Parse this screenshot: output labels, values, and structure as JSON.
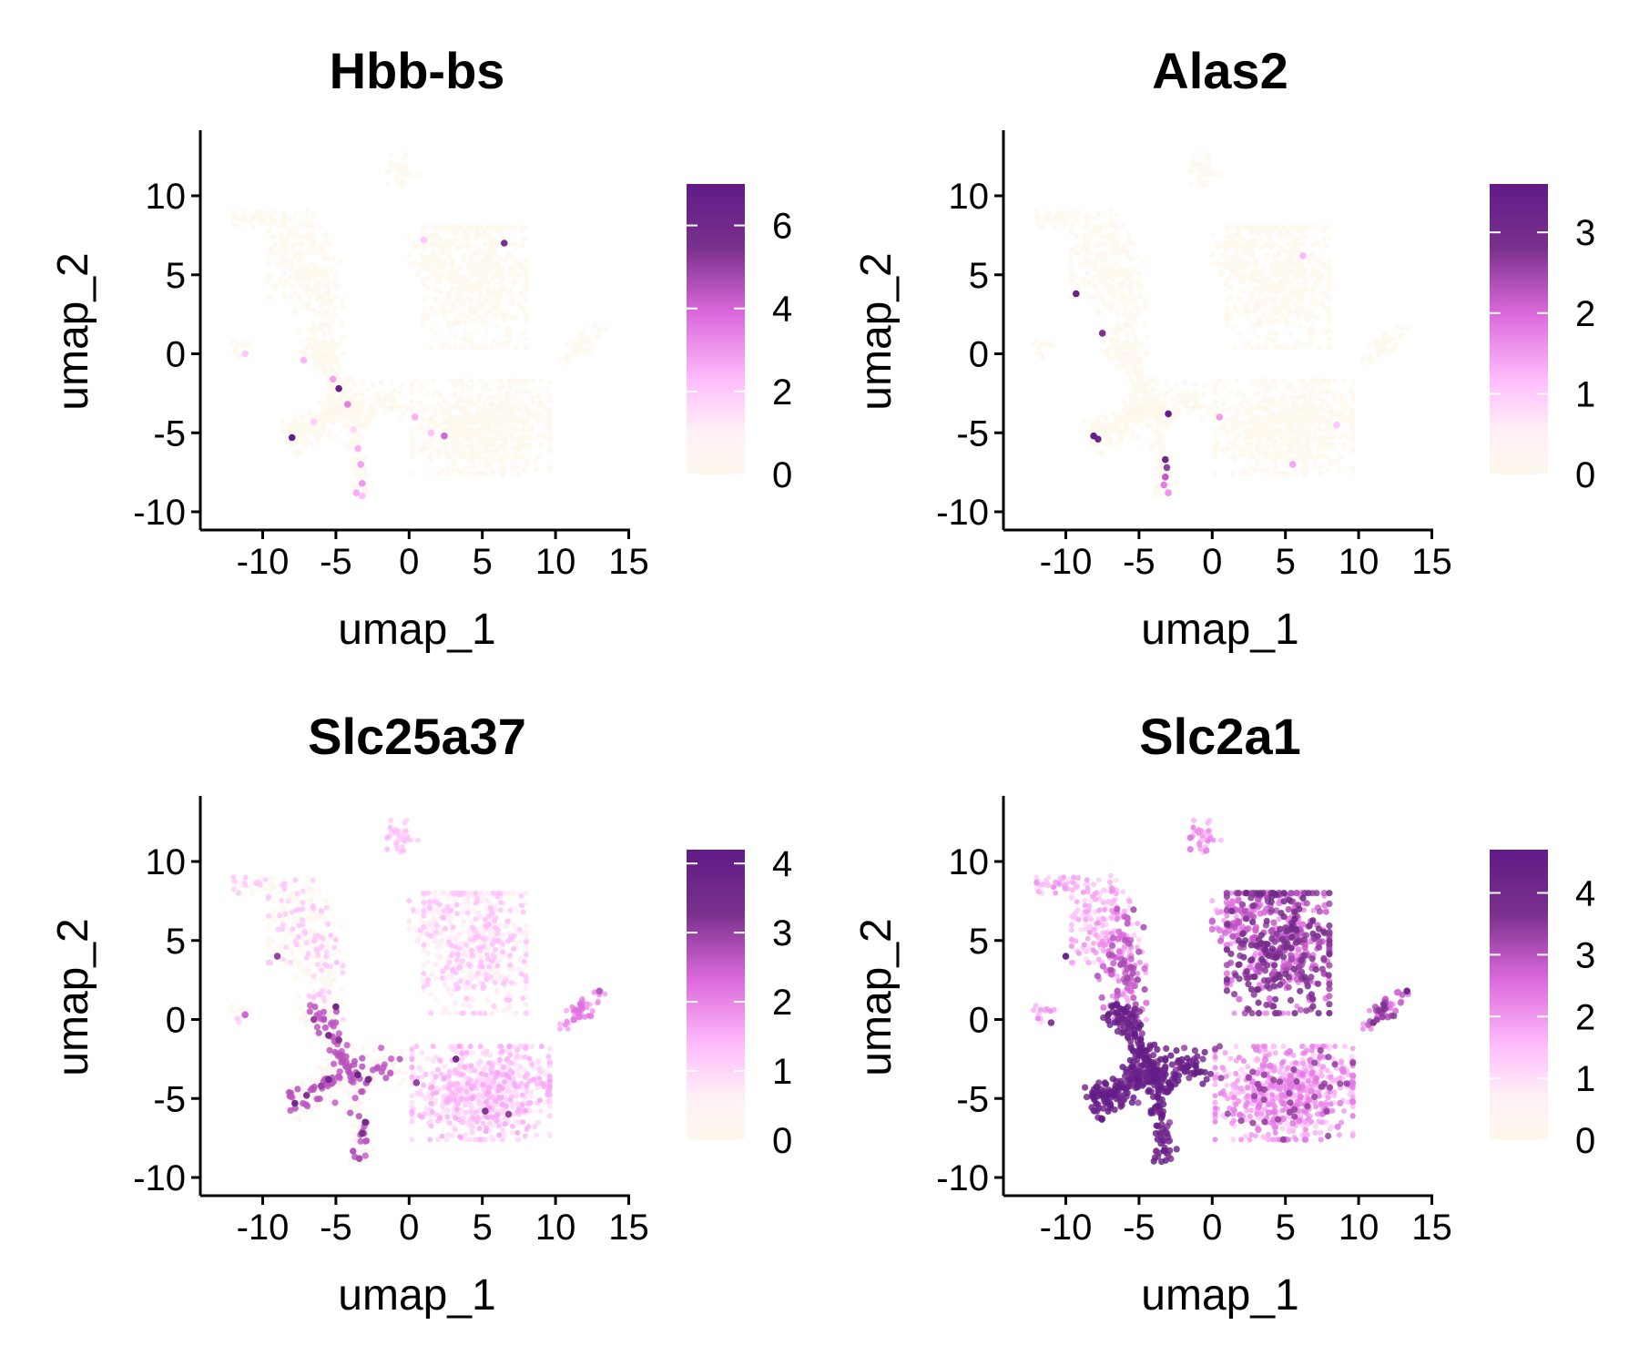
{
  "panels": [
    {
      "title": "Hbb-bs",
      "xlabel": "umap_1",
      "ylabel": "umap_2",
      "xlim": [
        -14,
        15
      ],
      "ylim": [
        -11,
        14
      ],
      "xticks": [
        "-10",
        "-5",
        "0",
        "5",
        "10",
        "15"
      ],
      "yticks": [
        "-10",
        "-5",
        "0",
        "5",
        "10"
      ],
      "colorbar": {
        "min": 0,
        "max": 7.0,
        "ticks": [
          "0",
          "2",
          "4",
          "6"
        ]
      },
      "highlights": [
        {
          "x": -4.8,
          "y": -2.2,
          "v": 6.5
        },
        {
          "x": -8.0,
          "y": -5.3,
          "v": 6.8
        },
        {
          "x": 6.5,
          "y": 7.0,
          "v": 5.5
        },
        {
          "x": -3.5,
          "y": -6.0,
          "v": 2.5
        },
        {
          "x": -3.3,
          "y": -7.0,
          "v": 2.8
        },
        {
          "x": -3.2,
          "y": -8.2,
          "v": 3.0
        },
        {
          "x": -3.6,
          "y": -8.8,
          "v": 2.6
        },
        {
          "x": -3.2,
          "y": -9.0,
          "v": 2.2
        },
        {
          "x": -4.2,
          "y": -3.2,
          "v": 3.5
        },
        {
          "x": -5.2,
          "y": -1.6,
          "v": 2.8
        },
        {
          "x": 2.4,
          "y": -5.2,
          "v": 4.0
        },
        {
          "x": 0.4,
          "y": -4.0,
          "v": 2.5
        },
        {
          "x": -11.2,
          "y": 0.0,
          "v": 2.0
        },
        {
          "x": -7.2,
          "y": -0.4,
          "v": 2.4
        },
        {
          "x": 1.0,
          "y": 7.2,
          "v": 2.0
        },
        {
          "x": -6.5,
          "y": -4.3,
          "v": 1.8
        },
        {
          "x": 1.5,
          "y": -5.0,
          "v": 2.2
        },
        {
          "x": -3.8,
          "y": -4.8,
          "v": 1.6
        }
      ]
    },
    {
      "title": "Alas2",
      "xlabel": "umap_1",
      "ylabel": "umap_2",
      "xlim": [
        -14,
        15
      ],
      "ylim": [
        -11,
        14
      ],
      "xticks": [
        "-10",
        "-5",
        "0",
        "5",
        "10",
        "15"
      ],
      "yticks": [
        "-10",
        "-5",
        "0",
        "5",
        "10"
      ],
      "colorbar": {
        "min": 0,
        "max": 3.6,
        "ticks": [
          "0",
          "1",
          "2",
          "3"
        ]
      },
      "highlights": [
        {
          "x": -9.3,
          "y": 3.8,
          "v": 3.4
        },
        {
          "x": -7.5,
          "y": 1.3,
          "v": 2.8
        },
        {
          "x": -8.1,
          "y": -5.2,
          "v": 3.5
        },
        {
          "x": -7.8,
          "y": -5.4,
          "v": 3.3
        },
        {
          "x": -3.0,
          "y": -3.8,
          "v": 3.5
        },
        {
          "x": -3.2,
          "y": -6.7,
          "v": 3.2
        },
        {
          "x": -3.1,
          "y": -7.2,
          "v": 2.6
        },
        {
          "x": -3.2,
          "y": -7.8,
          "v": 2.2
        },
        {
          "x": -3.3,
          "y": -8.3,
          "v": 1.8
        },
        {
          "x": -3.0,
          "y": -8.8,
          "v": 1.6
        },
        {
          "x": 0.5,
          "y": -4.0,
          "v": 1.5
        },
        {
          "x": 5.5,
          "y": -7.0,
          "v": 1.4
        },
        {
          "x": 6.2,
          "y": 6.2,
          "v": 1.2
        },
        {
          "x": 8.5,
          "y": -4.5,
          "v": 1.0
        }
      ]
    },
    {
      "title": "Slc25a37",
      "xlabel": "umap_1",
      "ylabel": "umap_2",
      "xlim": [
        -14,
        15
      ],
      "ylim": [
        -11,
        14
      ],
      "xticks": [
        "-10",
        "-5",
        "0",
        "5",
        "10",
        "15"
      ],
      "yticks": [
        "-10",
        "-5",
        "0",
        "5",
        "10"
      ],
      "colorbar": {
        "min": 0,
        "max": 4.2,
        "ticks": [
          "0",
          "1",
          "2",
          "3",
          "4"
        ]
      },
      "highlights": [
        {
          "x": -9.0,
          "y": 4.0,
          "v": 3.0
        },
        {
          "x": -5.0,
          "y": 0.8,
          "v": 3.6
        },
        {
          "x": -6.5,
          "y": 0.0,
          "v": 3.0
        },
        {
          "x": -5.5,
          "y": -1.0,
          "v": 3.4
        },
        {
          "x": -4.8,
          "y": -1.3,
          "v": 3.2
        },
        {
          "x": -7.8,
          "y": -5.3,
          "v": 3.5
        },
        {
          "x": -7.0,
          "y": -4.8,
          "v": 3.2
        },
        {
          "x": -6.0,
          "y": -4.2,
          "v": 3.0
        },
        {
          "x": -5.5,
          "y": -3.8,
          "v": 3.6
        },
        {
          "x": -3.5,
          "y": -3.5,
          "v": 3.8
        },
        {
          "x": -2.8,
          "y": -3.8,
          "v": 3.5
        },
        {
          "x": -3.0,
          "y": -6.5,
          "v": 3.6
        },
        {
          "x": -3.2,
          "y": -7.2,
          "v": 3.3
        },
        {
          "x": -3.4,
          "y": -8.8,
          "v": 2.8
        },
        {
          "x": 3.2,
          "y": -2.5,
          "v": 3.5
        },
        {
          "x": 0.5,
          "y": -4.0,
          "v": 3.0
        },
        {
          "x": 5.2,
          "y": -5.8,
          "v": 3.2
        },
        {
          "x": 6.8,
          "y": -6.0,
          "v": 3.0
        },
        {
          "x": 13.0,
          "y": 1.8,
          "v": 2.6
        },
        {
          "x": -11.2,
          "y": 0.3,
          "v": 2.4
        }
      ]
    },
    {
      "title": "Slc2a1",
      "xlabel": "umap_1",
      "ylabel": "umap_2",
      "xlim": [
        -14,
        15
      ],
      "ylim": [
        -11,
        14
      ],
      "xticks": [
        "-10",
        "-5",
        "0",
        "5",
        "10",
        "15"
      ],
      "yticks": [
        "-10",
        "-5",
        "0",
        "5",
        "10"
      ],
      "colorbar": {
        "min": 0,
        "max": 4.7,
        "ticks": [
          "0",
          "1",
          "2",
          "3",
          "4"
        ]
      },
      "highlights": [
        {
          "x": -10.0,
          "y": 4.0,
          "v": 4.2
        },
        {
          "x": 13.3,
          "y": 1.8,
          "v": 4.0
        },
        {
          "x": 11.0,
          "y": -0.2,
          "v": 3.6
        },
        {
          "x": -11.0,
          "y": -0.2,
          "v": 3.5
        }
      ]
    }
  ]
}
